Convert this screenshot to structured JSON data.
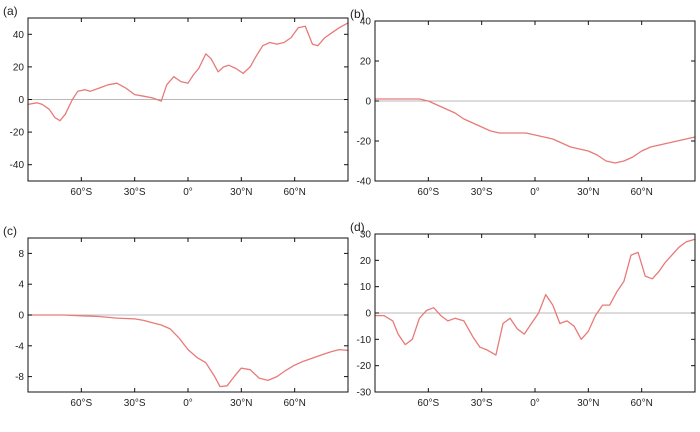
{
  "chart_data": [
    {
      "panel": "(a)",
      "type": "line",
      "xlabel": "",
      "ylabel": "",
      "xlim": [
        -90,
        90
      ],
      "ylim": [
        -50,
        50
      ],
      "yticks": [
        -40,
        -20,
        0,
        20,
        40
      ],
      "ytick_labels": [
        "-40",
        "-20",
        "0",
        "20",
        "40"
      ],
      "xticks": [
        -60,
        -30,
        0,
        30,
        60
      ],
      "xtick_labels": [
        "60°S",
        "30°S",
        "0°",
        "30°N",
        "60°N"
      ],
      "y_axis_side": "left",
      "line_color": "#e87a78",
      "x": [
        -90,
        -85,
        -82,
        -78,
        -75,
        -72,
        -69,
        -65,
        -62,
        -58,
        -55,
        -50,
        -45,
        -40,
        -35,
        -30,
        -25,
        -20,
        -15,
        -12,
        -8,
        -4,
        0,
        3,
        6,
        10,
        13,
        17,
        20,
        23,
        27,
        31,
        35,
        38,
        42,
        46,
        50,
        54,
        58,
        62,
        66,
        70,
        73,
        77,
        81,
        85,
        90
      ],
      "values": [
        -3,
        -2,
        -3,
        -6,
        -11,
        -13,
        -9,
        0,
        5,
        6,
        5,
        7,
        9,
        10,
        7,
        3,
        2,
        1,
        -1,
        9,
        14,
        11,
        10,
        15,
        19,
        28,
        25,
        17,
        20,
        21,
        19,
        16,
        20,
        26,
        33,
        35,
        34,
        35,
        38,
        44,
        45,
        34,
        33,
        38,
        41,
        44,
        47
      ]
    },
    {
      "panel": "(b)",
      "type": "line",
      "xlabel": "",
      "ylabel": "",
      "xlim": [
        -90,
        90
      ],
      "ylim": [
        -40,
        40
      ],
      "yticks": [
        -40,
        -20,
        0,
        20,
        40
      ],
      "ytick_labels": [
        "-40",
        "-20",
        "0",
        "20",
        "40"
      ],
      "xticks": [
        -60,
        -30,
        0,
        30,
        60
      ],
      "xtick_labels": [
        "60°S",
        "30°S",
        "0°",
        "30°N",
        "60°N"
      ],
      "y_axis_side": "left",
      "line_color": "#e87a78",
      "x": [
        -90,
        -80,
        -70,
        -65,
        -60,
        -55,
        -50,
        -45,
        -40,
        -35,
        -30,
        -25,
        -20,
        -15,
        -10,
        -5,
        0,
        5,
        10,
        15,
        20,
        25,
        30,
        35,
        40,
        45,
        50,
        55,
        60,
        65,
        70,
        75,
        80,
        85,
        90
      ],
      "values": [
        1,
        1,
        1,
        1,
        0,
        -2,
        -4,
        -6,
        -9,
        -11,
        -13,
        -15,
        -16,
        -16,
        -16,
        -16,
        -17,
        -18,
        -19,
        -21,
        -23,
        -24,
        -25,
        -27,
        -30,
        -31,
        -30,
        -28,
        -25,
        -23,
        -22,
        -21,
        -20,
        -19,
        -18
      ]
    },
    {
      "panel": "(c)",
      "type": "line",
      "xlabel": "",
      "ylabel": "",
      "xlim": [
        -90,
        90
      ],
      "ylim": [
        -10,
        10
      ],
      "yticks": [
        -8,
        -4,
        0,
        4,
        8
      ],
      "ytick_labels": [
        "-8",
        "-4",
        "0",
        "4",
        "8"
      ],
      "xticks": [
        -60,
        -30,
        0,
        30,
        60
      ],
      "xtick_labels": [
        "60°S",
        "30°S",
        "0°",
        "30°N",
        "60°N"
      ],
      "y_axis_side": "left",
      "line_color": "#e87a78",
      "x": [
        -90,
        -80,
        -70,
        -60,
        -50,
        -40,
        -30,
        -25,
        -20,
        -15,
        -10,
        -5,
        0,
        5,
        10,
        15,
        18,
        22,
        26,
        30,
        35,
        40,
        45,
        50,
        55,
        60,
        65,
        70,
        75,
        80,
        85,
        90
      ],
      "values": [
        0,
        0,
        0,
        -0.1,
        -0.2,
        -0.4,
        -0.5,
        -0.7,
        -1,
        -1.3,
        -1.8,
        -3,
        -4.5,
        -5.5,
        -6.2,
        -8,
        -9.3,
        -9.2,
        -8,
        -6.9,
        -7.1,
        -8.2,
        -8.5,
        -8,
        -7.2,
        -6.5,
        -6,
        -5.6,
        -5.2,
        -4.8,
        -4.5,
        -4.6
      ]
    },
    {
      "panel": "(d)",
      "type": "line",
      "xlabel": "",
      "ylabel": "",
      "xlim": [
        -90,
        90
      ],
      "ylim": [
        -30,
        30
      ],
      "yticks": [
        -30,
        -20,
        -10,
        0,
        10,
        20,
        30
      ],
      "ytick_labels": [
        "-30",
        "-20",
        "-10",
        "0",
        "10",
        "20",
        "30"
      ],
      "xticks": [
        -60,
        -30,
        0,
        30,
        60
      ],
      "xtick_labels": [
        "60°S",
        "30°S",
        "0°",
        "30°N",
        "60°N"
      ],
      "y_axis_side": "left",
      "line_color": "#e87a78",
      "x": [
        -90,
        -85,
        -80,
        -77,
        -73,
        -69,
        -65,
        -61,
        -57,
        -53,
        -49,
        -45,
        -40,
        -35,
        -31,
        -27,
        -22,
        -18,
        -14,
        -10,
        -6,
        -2,
        2,
        6,
        10,
        14,
        18,
        22,
        26,
        30,
        34,
        38,
        42,
        46,
        50,
        54,
        58,
        62,
        66,
        70,
        73,
        77,
        81,
        85,
        90
      ],
      "values": [
        -1,
        -1,
        -3,
        -8,
        -12,
        -10,
        -2,
        1,
        2,
        -1,
        -3,
        -2,
        -3,
        -9,
        -13,
        -14,
        -16,
        -4,
        -2,
        -6,
        -8,
        -4,
        0,
        7,
        3,
        -4,
        -3,
        -5,
        -10,
        -7,
        -1,
        3,
        3,
        8,
        12,
        22,
        23,
        14,
        13,
        16,
        19,
        22,
        25,
        27,
        28
      ]
    }
  ]
}
